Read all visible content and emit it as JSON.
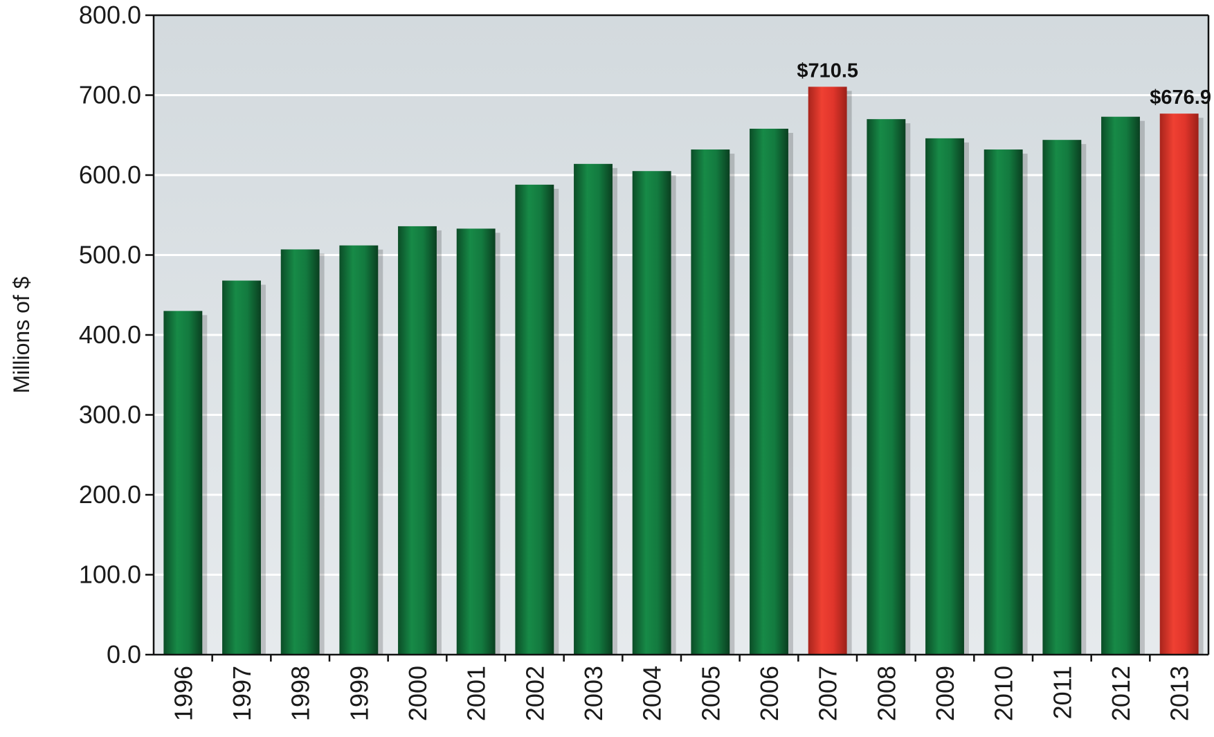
{
  "chart_data": {
    "type": "bar",
    "title": "",
    "xlabel": "",
    "ylabel": "Millions of $",
    "ylim": [
      0,
      800
    ],
    "y_ticks": [
      "0.0",
      "100.0",
      "200.0",
      "300.0",
      "400.0",
      "500.0",
      "600.0",
      "700.0",
      "800.0"
    ],
    "grid": "horizontal",
    "categories": [
      "1996",
      "1997",
      "1998",
      "1999",
      "2000",
      "2001",
      "2002",
      "2003",
      "2004",
      "2005",
      "2006",
      "2007",
      "2008",
      "2009",
      "2010",
      "2011",
      "2012",
      "2013"
    ],
    "values": [
      430,
      468,
      507,
      512,
      536,
      533,
      588,
      614,
      605,
      632,
      658,
      710.5,
      670,
      646,
      632,
      644,
      673,
      676.9
    ],
    "highlighted": [
      "2007",
      "2013"
    ],
    "data_labels": [
      {
        "category": "2007",
        "text": "$710.5"
      },
      {
        "category": "2013",
        "text": "$676.9"
      }
    ],
    "colors": {
      "bar": "#137a3f",
      "highlight": "#e0352b",
      "plot_background": "#dde2e6",
      "gridline": "#ffffff",
      "axis": "#111111"
    }
  }
}
